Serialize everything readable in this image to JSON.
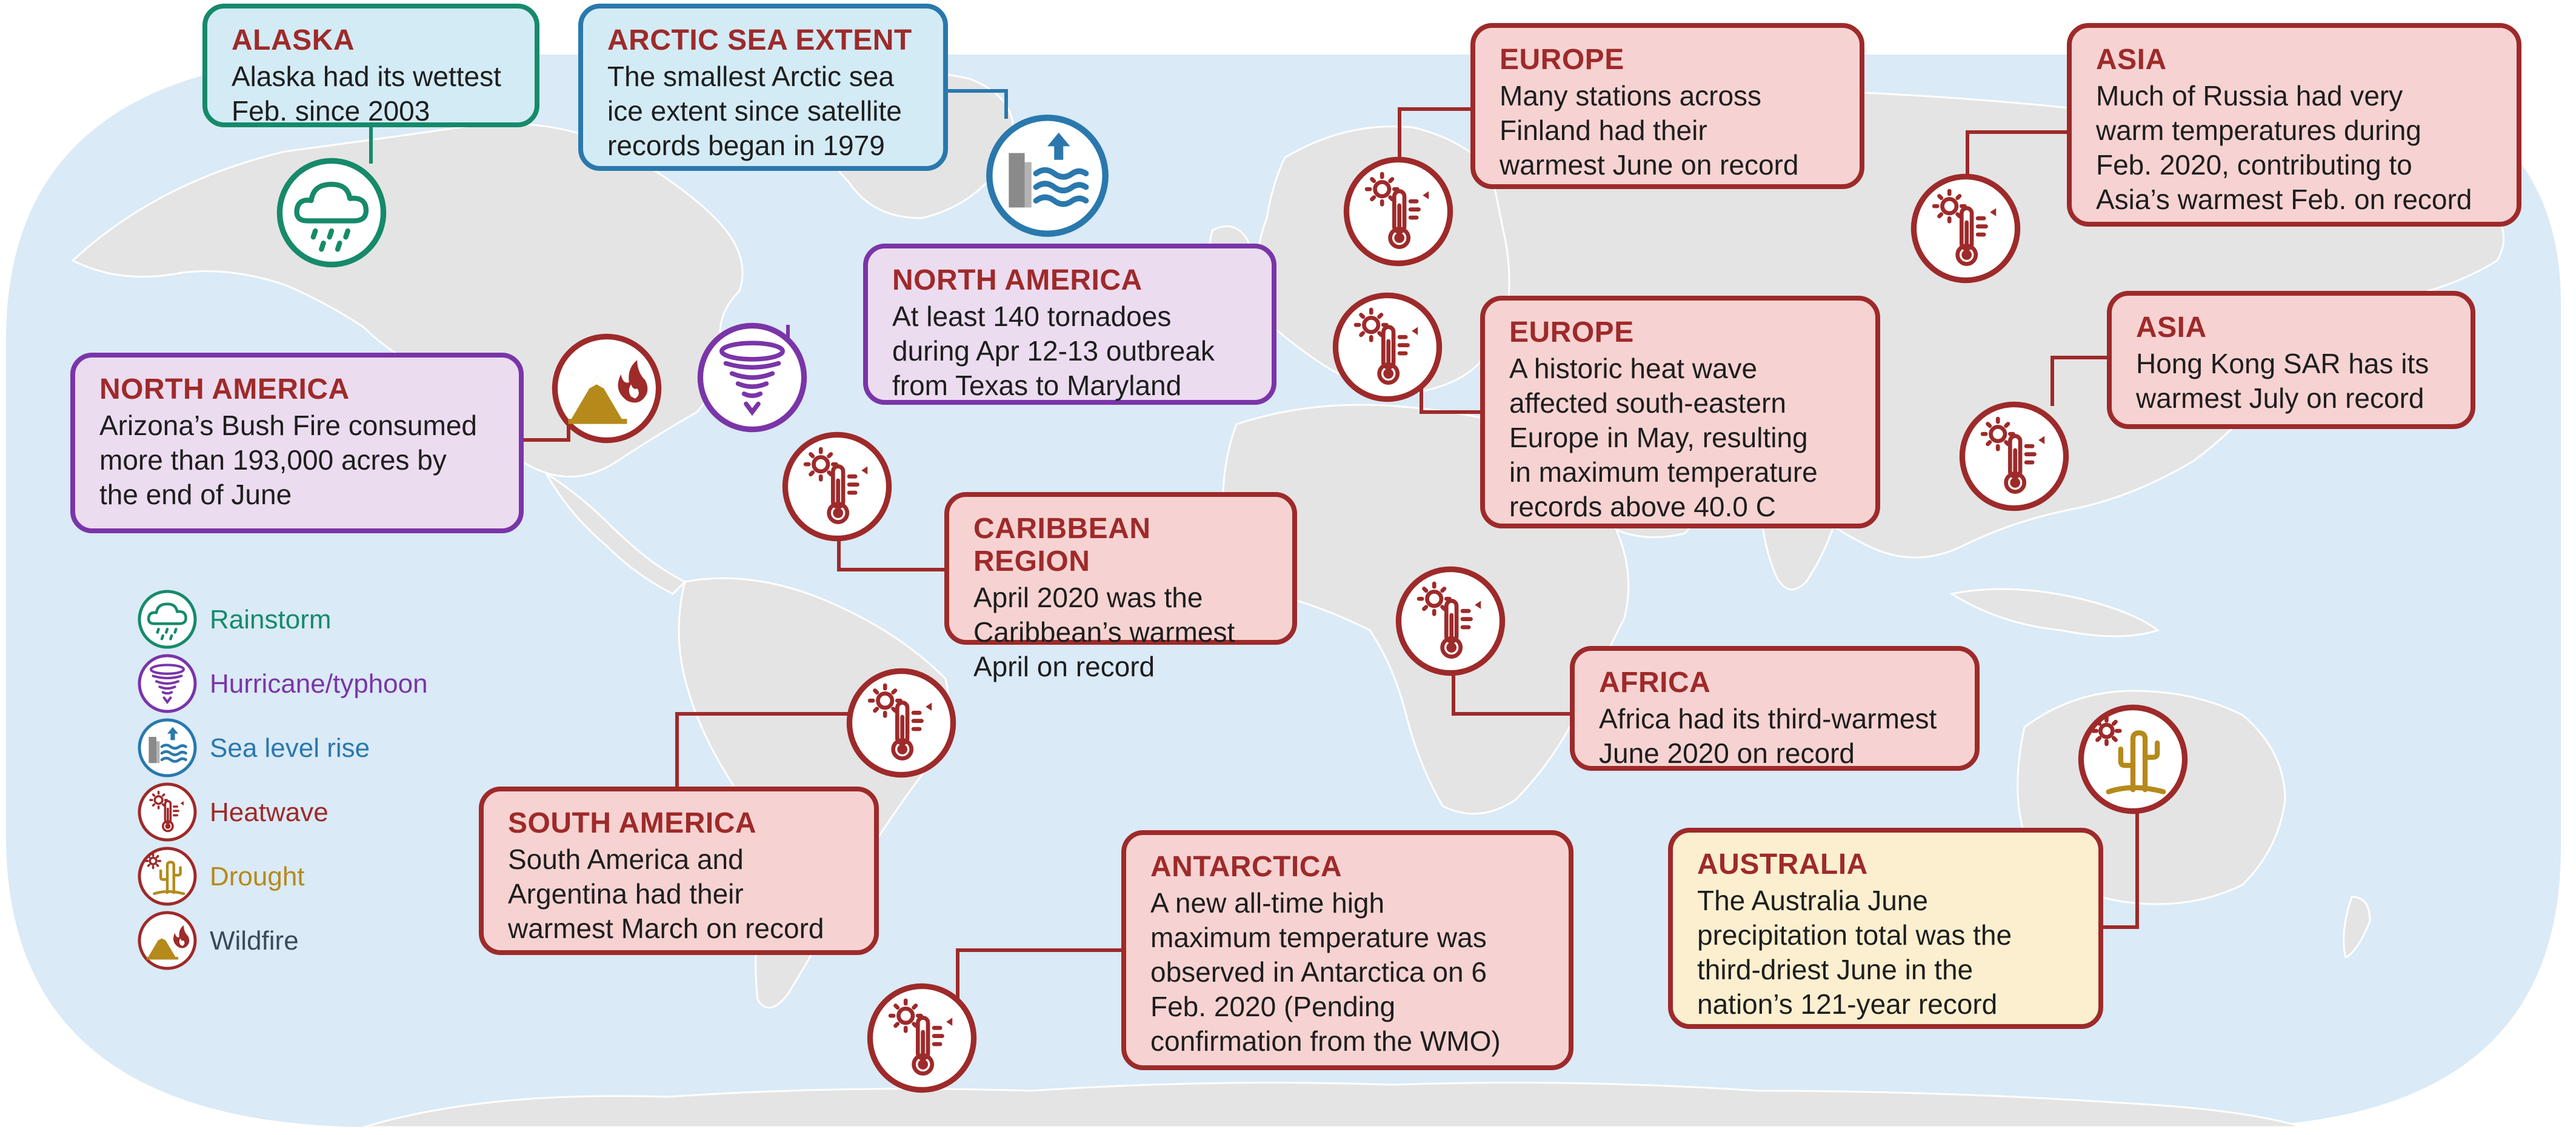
{
  "colors": {
    "rain": "#168a6a",
    "hurricane": "#7a35a8",
    "sea": "#2a78ad",
    "heat": "#9e2a2a",
    "drought": "#b58a1b",
    "wildfire": "#9e2a2a",
    "ocean": "#daeaf6",
    "land": "#e5e5e5"
  },
  "legend": [
    {
      "label": "Rainstorm",
      "icon": "rain-cloud-icon"
    },
    {
      "label": "Hurricane/typhoon",
      "icon": "tornado-icon"
    },
    {
      "label": "Sea level rise",
      "icon": "sea-level-icon"
    },
    {
      "label": "Heatwave",
      "icon": "thermometer-sun-icon"
    },
    {
      "label": "Drought",
      "icon": "cactus-sun-icon"
    },
    {
      "label": "Wildfire",
      "icon": "mountain-fire-icon"
    }
  ],
  "callouts": {
    "alaska": {
      "title": "ALASKA",
      "lines": [
        "Alaska had its wettest",
        "Feb. since 2003"
      ]
    },
    "arctic": {
      "title": "ARCTIC SEA EXTENT",
      "lines": [
        "The smallest Arctic sea",
        "ice extent since satellite",
        "records began in 1979"
      ]
    },
    "na_tornado": {
      "title": "NORTH AMERICA",
      "lines": [
        "At least 140 tornadoes",
        "during Apr 12-13 outbreak",
        "from Texas to Maryland"
      ]
    },
    "na_fire": {
      "title": "NORTH AMERICA",
      "lines": [
        "Arizona’s Bush Fire consumed",
        "more than 193,000 acres by",
        "the end of June"
      ]
    },
    "caribbean": {
      "title": "CARIBBEAN REGION",
      "lines": [
        "April 2020 was the",
        "Caribbean’s warmest",
        "April on record"
      ]
    },
    "south_america": {
      "title": "SOUTH AMERICA",
      "lines": [
        "South America and",
        "Argentina had their",
        "warmest March on record"
      ]
    },
    "antarctica": {
      "title": "ANTARCTICA",
      "lines": [
        "A new all-time high",
        "maximum temperature was",
        "observed in Antarctica on 6",
        "Feb. 2020 (Pending",
        "confirmation from the WMO)"
      ]
    },
    "europe_finland": {
      "title": "EUROPE",
      "lines": [
        "Many stations across",
        "Finland had their",
        "warmest June on record"
      ]
    },
    "europe_heat": {
      "title": "EUROPE",
      "lines": [
        "A historic heat wave",
        "affected south-eastern",
        "Europe in May, resulting",
        "in maximum temperature",
        "records above 40.0 C"
      ]
    },
    "africa": {
      "title": "AFRICA",
      "lines": [
        "Africa had its third-warmest",
        "June 2020 on record"
      ]
    },
    "asia_russia": {
      "title": "ASIA",
      "lines": [
        "Much of Russia had very",
        "warm temperatures during",
        "Feb. 2020, contributing to",
        "Asia’s warmest Feb. on record"
      ]
    },
    "asia_hk": {
      "title": "ASIA",
      "lines": [
        "Hong Kong SAR has its",
        "warmest July on record"
      ]
    },
    "australia": {
      "title": "AUSTRALIA",
      "lines": [
        "The Australia June",
        "precipitation total was the",
        "third-driest June in the",
        "nation’s 121-year record"
      ]
    }
  }
}
